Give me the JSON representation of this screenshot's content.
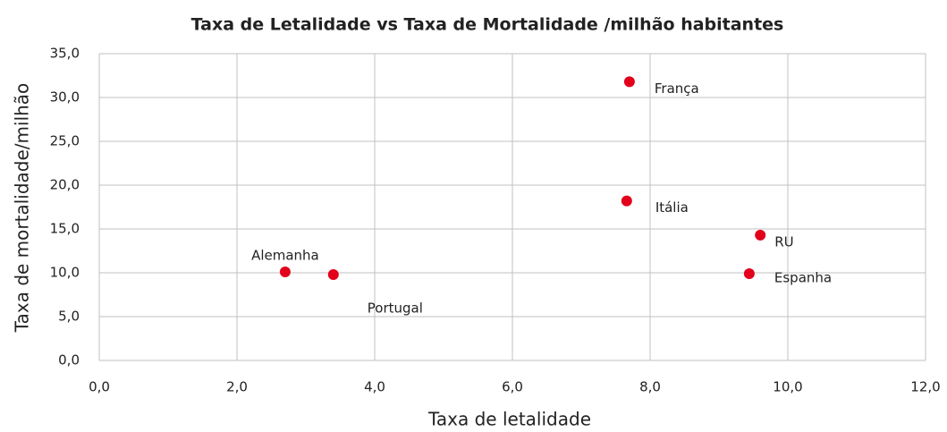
{
  "chart_data": {
    "type": "scatter",
    "title": "Taxa de Letalidade vs Taxa de Mortalidade /milhão habitantes",
    "xlabel": "Taxa de letalidade",
    "ylabel": "Taxa de mortalidade/milhão",
    "labels": [
      "Alemanha",
      "Portugal",
      "França",
      "Itália",
      "RU",
      "Espanha"
    ],
    "x": [
      2.7,
      3.4,
      7.7,
      7.66,
      9.6,
      9.44
    ],
    "y": [
      10.1,
      9.8,
      31.8,
      18.2,
      14.3,
      9.9
    ],
    "color": "#e2001a",
    "xlim": [
      0,
      12
    ],
    "ylim": [
      0,
      35
    ],
    "xticks": [
      {
        "value": 0,
        "label": "0,0"
      },
      {
        "value": 2,
        "label": "2,0"
      },
      {
        "value": 4,
        "label": "4,0"
      },
      {
        "value": 6,
        "label": "6,0"
      },
      {
        "value": 8,
        "label": "8,0"
      },
      {
        "value": 10,
        "label": "10,0"
      },
      {
        "value": 12,
        "label": "12,0"
      }
    ],
    "yticks": [
      {
        "value": 0,
        "label": "0,0"
      },
      {
        "value": 5,
        "label": "5,0"
      },
      {
        "value": 10,
        "label": "10,0"
      },
      {
        "value": 15,
        "label": "15,0"
      },
      {
        "value": 20,
        "label": "20,0"
      },
      {
        "value": 25,
        "label": "25,0"
      },
      {
        "value": 30,
        "label": "30,0"
      },
      {
        "value": 35,
        "label": "35,0"
      }
    ],
    "grid": true
  }
}
